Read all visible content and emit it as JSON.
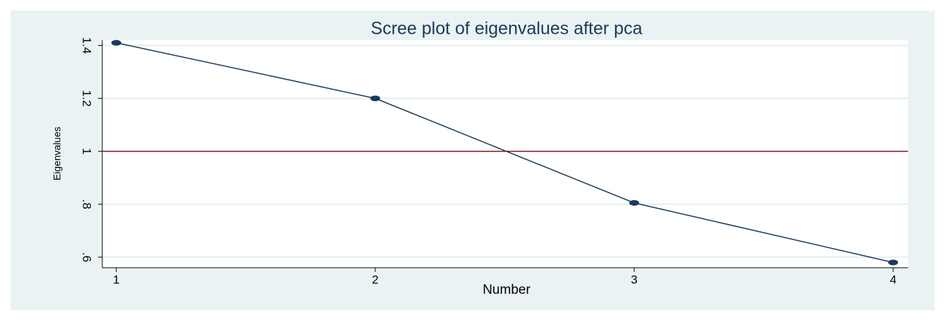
{
  "chart_data": {
    "type": "line",
    "title": "Scree plot of eigenvalues after pca",
    "x_label": "Number",
    "y_label": "Eigenvalues",
    "x": [
      1,
      2,
      3,
      4
    ],
    "series": [
      {
        "name": "Eigenvalues",
        "color": "#1a3a5c",
        "values": [
          1.41,
          1.2,
          0.805,
          0.58
        ]
      }
    ],
    "xlim": [
      0.946,
      4.057
    ],
    "ylim": [
      0.56,
      1.42
    ],
    "xticks": [
      1,
      2,
      3,
      4
    ],
    "yticks": [
      {
        "value": 0.6,
        "label": ".6"
      },
      {
        "value": 0.8,
        "label": ".8"
      },
      1,
      {
        "value": 1.2,
        "label": "1.2"
      },
      {
        "value": 1.4,
        "label": "1.4"
      }
    ],
    "reference_line": {
      "value": 1,
      "color": "#90182a"
    },
    "grid": true
  }
}
